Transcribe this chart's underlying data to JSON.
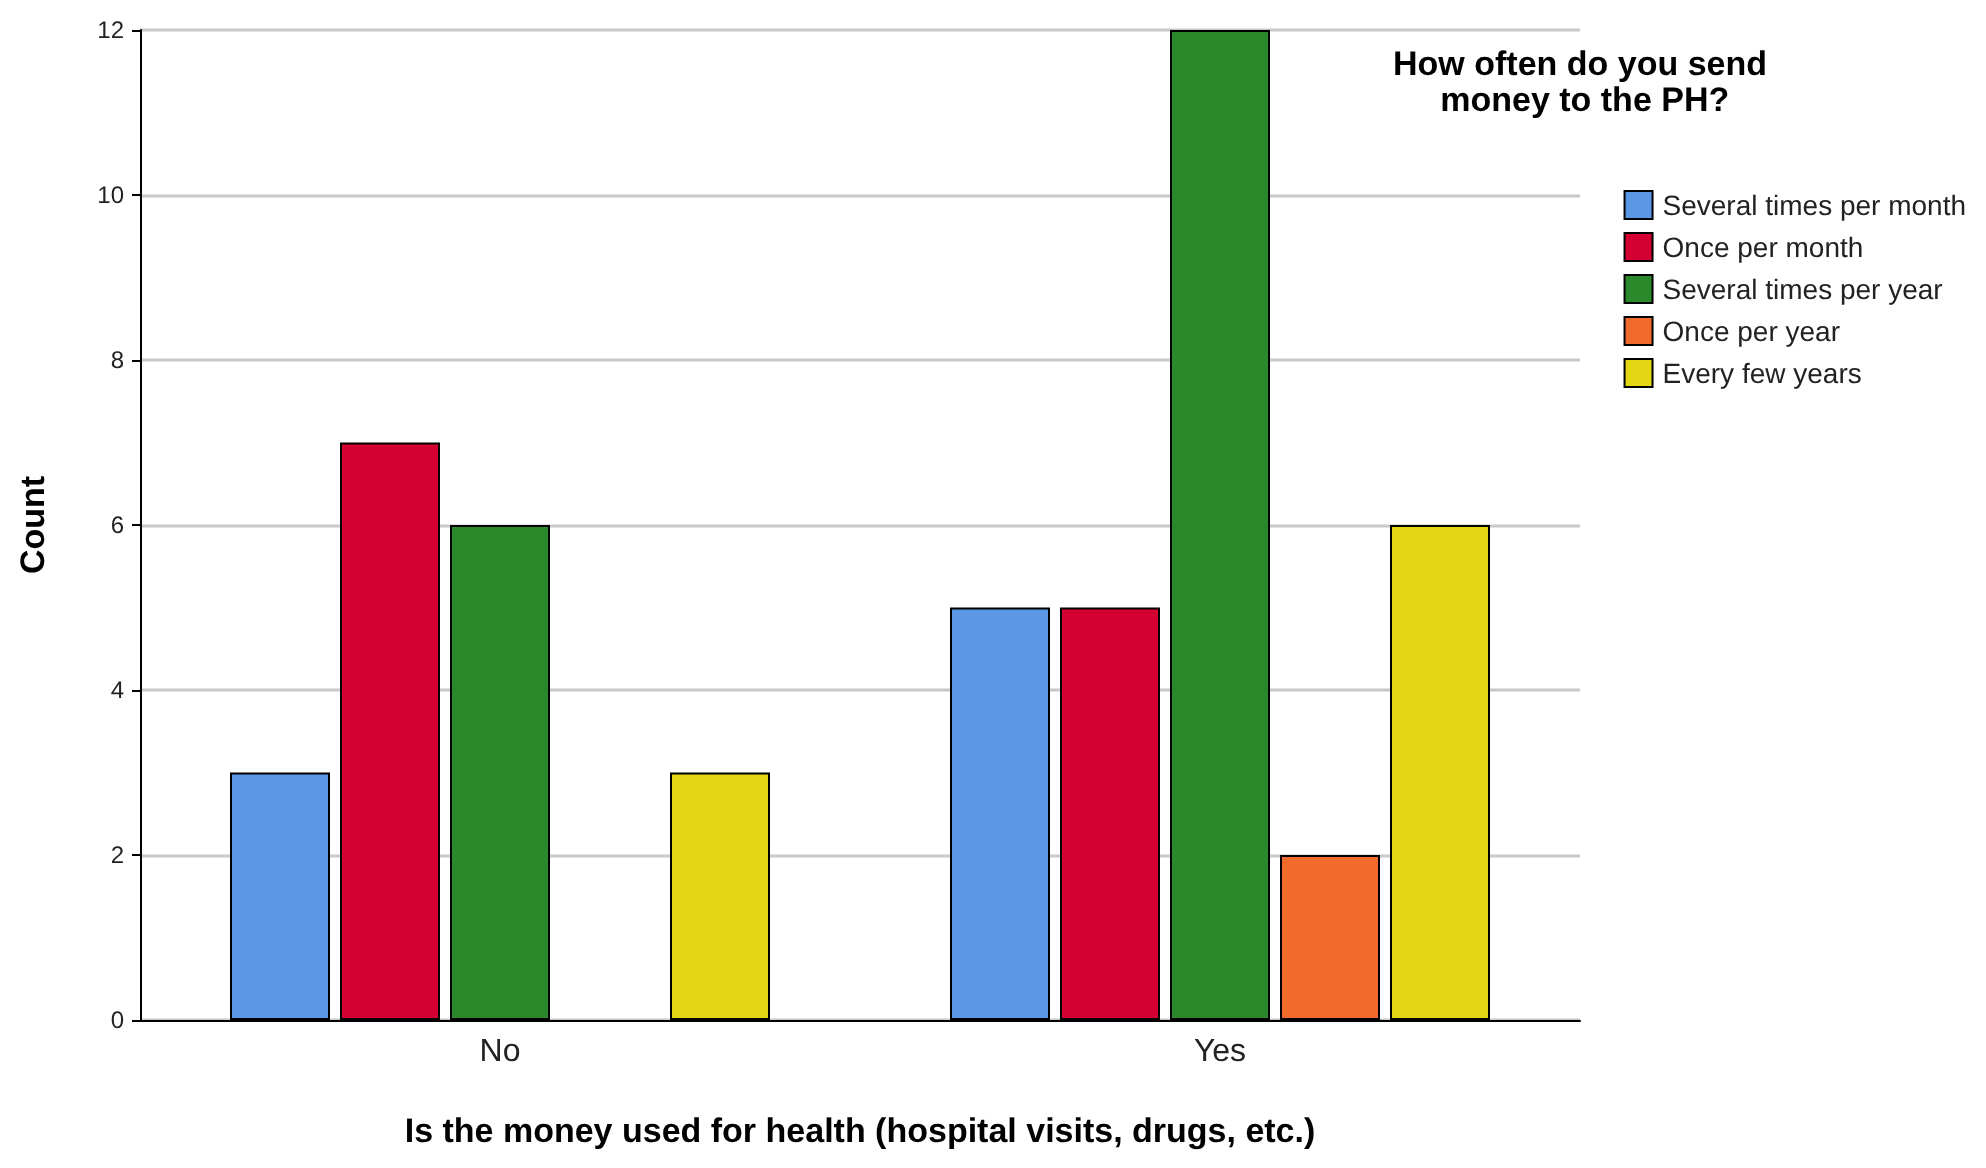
{
  "chart_data": {
    "type": "bar",
    "xlabel": "Is the money used for health (hospital visits, drugs, etc.)",
    "ylabel": "Count",
    "legend_title": "How often do you send money to the PH?",
    "categories": [
      "No",
      "Yes"
    ],
    "series": [
      {
        "name": "Several times per month",
        "color": "#5b97e5",
        "values": [
          3,
          5
        ]
      },
      {
        "name": "Once per month",
        "color": "#d50032",
        "values": [
          7,
          5
        ]
      },
      {
        "name": "Several times per year",
        "color": "#2a892a",
        "values": [
          6,
          12
        ]
      },
      {
        "name": "Once per year",
        "color": "#f26a2c",
        "values": [
          null,
          2
        ]
      },
      {
        "name": "Every few years",
        "color": "#e2d712",
        "values": [
          3,
          6
        ]
      }
    ],
    "ylim": [
      0,
      12
    ],
    "yticks": [
      0,
      2,
      4,
      6,
      8,
      10,
      12
    ],
    "grid": "y",
    "legend": "right"
  }
}
